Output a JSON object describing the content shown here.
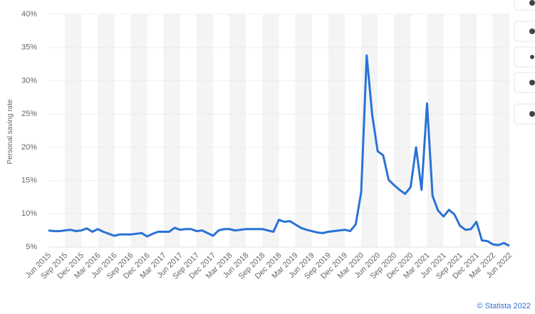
{
  "chart_data": {
    "type": "line",
    "y_label": "Personal saving rate",
    "credit": "© Statista 2022",
    "categories": [
      "Jun 2015",
      null,
      null,
      "Sep 2015",
      null,
      null,
      "Dec 2015",
      null,
      null,
      "Mar 2016",
      null,
      null,
      "Jun 2016",
      null,
      null,
      "Sep 2016",
      null,
      null,
      "Dec 2016",
      null,
      null,
      "Mar 2017",
      null,
      null,
      "Jun 2017",
      null,
      null,
      "Sep 2017",
      null,
      null,
      "Dec 2017",
      null,
      null,
      "Mar 2018",
      null,
      null,
      "Jun 2018",
      null,
      null,
      "Sep 2018",
      null,
      null,
      "Dec 2018",
      null,
      null,
      "Mar 2019",
      null,
      null,
      "Jun 2019",
      null,
      null,
      "Sep 2019",
      null,
      null,
      "Dec 2019",
      null,
      null,
      "Mar 2020",
      null,
      null,
      "Jun 2020",
      null,
      null,
      "Sep 2020",
      null,
      null,
      "Dec 2020",
      null,
      null,
      "Mar 2021",
      null,
      null,
      "Jun 2021",
      null,
      null,
      "Sep 2021",
      null,
      null,
      "Dec 2021",
      null,
      null,
      "Mar 2022",
      null,
      null,
      "Jun 2022"
    ],
    "values": [
      7.5,
      7.4,
      7.4,
      7.5,
      7.6,
      7.4,
      7.5,
      7.8,
      7.3,
      7.7,
      7.3,
      7.0,
      6.7,
      6.9,
      6.9,
      6.9,
      7.0,
      7.1,
      6.6,
      7.0,
      7.3,
      7.3,
      7.3,
      7.9,
      7.6,
      7.7,
      7.7,
      7.4,
      7.5,
      7.1,
      6.7,
      7.5,
      7.7,
      7.7,
      7.5,
      7.6,
      7.7,
      7.7,
      7.7,
      7.7,
      7.5,
      7.3,
      9.1,
      8.8,
      8.9,
      8.4,
      7.9,
      7.6,
      7.4,
      7.2,
      7.1,
      7.3,
      7.4,
      7.5,
      7.6,
      7.4,
      8.4,
      13.3,
      33.8,
      24.9,
      19.4,
      18.8,
      15.1,
      14.3,
      13.6,
      13.0,
      14.0,
      20.0,
      13.6,
      26.6,
      12.7,
      10.5,
      9.6,
      10.6,
      9.9,
      8.2,
      7.6,
      7.7,
      8.8,
      6.0,
      5.9,
      5.4,
      5.3,
      5.6,
      5.2
    ],
    "color": "#2a72d6",
    "ylim": [
      5,
      40
    ],
    "yticks": [
      {
        "value": 5,
        "label": "5%"
      },
      {
        "value": 10,
        "label": "10%"
      },
      {
        "value": 15,
        "label": "15%"
      },
      {
        "value": 20,
        "label": "20%"
      },
      {
        "value": 25,
        "label": "25%"
      },
      {
        "value": 30,
        "label": "30%"
      },
      {
        "value": 35,
        "label": "35%"
      },
      {
        "value": 40,
        "label": "40%"
      }
    ],
    "grid": true
  }
}
